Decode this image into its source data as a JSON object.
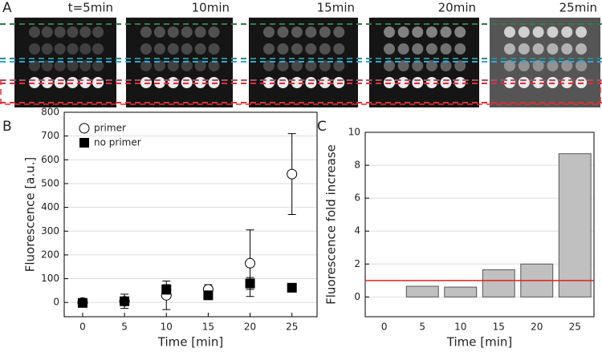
{
  "panel_labels": [
    "A",
    "B",
    "C"
  ],
  "image_labels": [
    "t=5min",
    "10min",
    "15min",
    "20min",
    "25min"
  ],
  "chart_data": [
    {
      "type": "scatter",
      "xlabel": "Time [min]",
      "ylabel": "Fluorescence [a.u.]",
      "x": [
        0,
        5,
        10,
        15,
        20,
        25
      ],
      "series": [
        {
          "name": "primer",
          "marker": "circle",
          "color": "#000000",
          "values": [
            0,
            5,
            30,
            55,
            165,
            540
          ],
          "errors": [
            15,
            30,
            60,
            20,
            140,
            170
          ]
        },
        {
          "name": "no primer",
          "marker": "square",
          "color": "#000000",
          "values": [
            -2,
            5,
            55,
            30,
            80,
            62
          ],
          "errors": [
            10,
            15,
            20,
            10,
            25,
            18
          ]
        }
      ],
      "xlim": [
        -2.2,
        28
      ],
      "xticks": [
        0,
        5,
        10,
        15,
        20,
        25
      ],
      "ylim": [
        -60,
        800
      ],
      "yticks": [
        0,
        100,
        200,
        300,
        400,
        500,
        600,
        700,
        800
      ],
      "grid": true,
      "legend": "upper left"
    },
    {
      "type": "bar",
      "xlabel": "Time [min]",
      "ylabel": "Fluorescence fold increase",
      "categories": [
        "0",
        "5",
        "10",
        "15",
        "20",
        "25"
      ],
      "values": [
        0,
        0.65,
        0.6,
        1.65,
        2.0,
        8.7
      ],
      "color": "#c0c0c0",
      "hline": 1,
      "hline_color": "#e02020",
      "ylim": [
        -1.2,
        10
      ],
      "yticks": [
        0,
        2,
        4,
        6,
        8,
        10
      ],
      "grid": true
    }
  ]
}
